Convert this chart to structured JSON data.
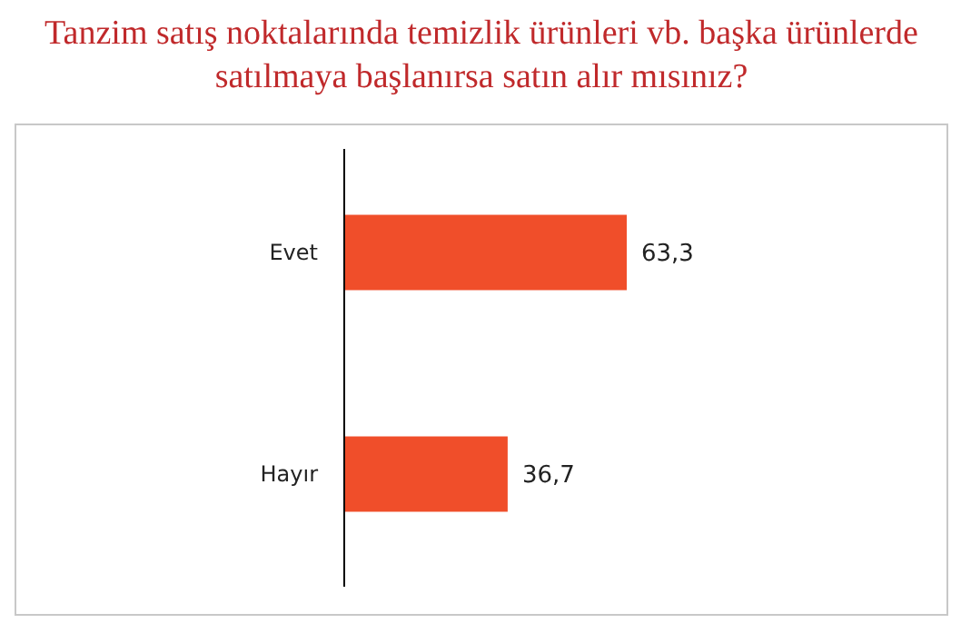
{
  "chart_data": {
    "type": "bar",
    "orientation": "horizontal",
    "title": "Tanzim satış noktalarında temizlik ürünleri vb. başka ürünlerde satılmaya başlanırsa satın alır mısınız?",
    "categories": [
      "Evet",
      "Hayır"
    ],
    "values": [
      63.3,
      36.7
    ],
    "value_labels": [
      "63,3",
      "36,7"
    ],
    "color": "#f04e2a"
  }
}
